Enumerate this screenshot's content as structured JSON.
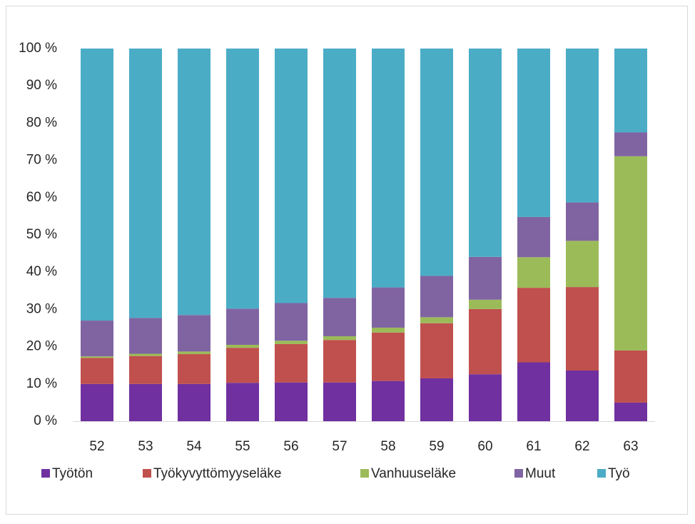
{
  "chart_data": {
    "type": "stacked_bar",
    "categories": [
      "52",
      "53",
      "54",
      "55",
      "56",
      "57",
      "58",
      "59",
      "60",
      "61",
      "62",
      "63"
    ],
    "series": [
      {
        "name": "Työtön",
        "color": "#7030a0",
        "values": [
          10,
          10,
          10,
          10.3,
          10.4,
          10.4,
          10.8,
          11.5,
          12.6,
          15.8,
          13.6,
          5.0
        ]
      },
      {
        "name": "Työkyvyttömyyseläke",
        "color": "#c0504d",
        "values": [
          7,
          7.5,
          8,
          9.4,
          10.3,
          11.4,
          13.0,
          14.8,
          17.5,
          20.0,
          22.4,
          14.0
        ]
      },
      {
        "name": "Vanhuuseläke",
        "color": "#9bbb59",
        "values": [
          0.4,
          0.6,
          0.7,
          0.8,
          0.9,
          1.0,
          1.3,
          1.6,
          2.5,
          8.2,
          12.4,
          52.1
        ]
      },
      {
        "name": "Muut",
        "color": "#8064a2",
        "values": [
          9.6,
          9.6,
          9.8,
          9.7,
          10.1,
          10.3,
          10.8,
          11.1,
          11.5,
          10.8,
          10.3,
          6.4
        ]
      },
      {
        "name": "Työ",
        "color": "#4bacc6",
        "values": [
          73,
          72.3,
          71.5,
          69.8,
          68.3,
          66.9,
          64.1,
          61.0,
          55.9,
          45.2,
          41.3,
          22.5
        ]
      }
    ],
    "ylim": [
      0,
      100
    ],
    "yticks": [
      {
        "value": 0,
        "label": "0 %"
      },
      {
        "value": 10,
        "label": "10 %"
      },
      {
        "value": 20,
        "label": "20 %"
      },
      {
        "value": 30,
        "label": "30 %"
      },
      {
        "value": 40,
        "label": "40 %"
      },
      {
        "value": 50,
        "label": "50 %"
      },
      {
        "value": 60,
        "label": "60 %"
      },
      {
        "value": 70,
        "label": "70 %"
      },
      {
        "value": 80,
        "label": "80 %"
      },
      {
        "value": 90,
        "label": "90 %"
      },
      {
        "value": 100,
        "label": "100 %"
      }
    ],
    "legend": "bottom"
  }
}
